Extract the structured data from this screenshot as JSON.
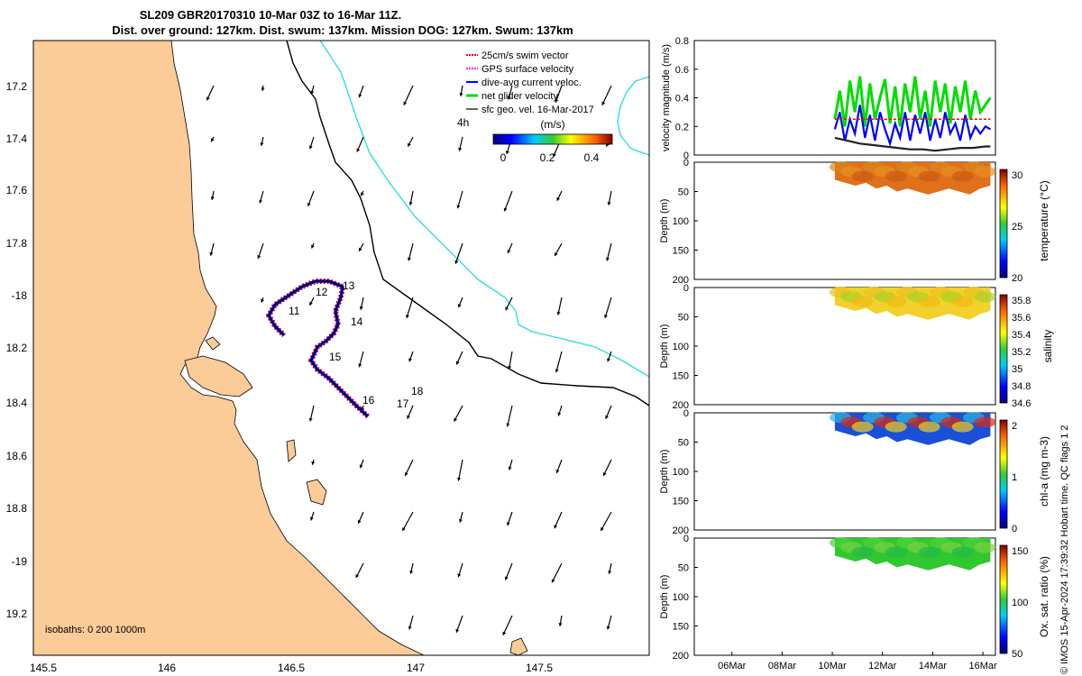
{
  "title": {
    "line1": "SL209 GBR20170310 10-Mar 03Z to 16-Mar 11Z.",
    "line2": "Dist. over ground: 127km. Dist. swum: 137km. Mission DOG: 127km. Swum: 137km"
  },
  "map": {
    "lon_ticks": [
      "145.5",
      "146",
      "146.5",
      "147",
      "147.5"
    ],
    "lat_ticks": [
      "17.2",
      "17.4",
      "17.6",
      "17.8",
      "-18",
      "18.2",
      "18.4",
      "18.6",
      "18.8",
      "-19",
      "19.2"
    ],
    "legend": [
      {
        "label": "25cm/s swim vector",
        "color": "#ff0000"
      },
      {
        "label": "GPS surface velocity",
        "color": "#ff00ff"
      },
      {
        "label": "dive-avg current veloc.",
        "color": "#0000ff"
      },
      {
        "label": "net glider velocity",
        "color": "#00dd00"
      },
      {
        "label": "sfc geo. vel. 16-Mar-2017",
        "color": "#000000"
      }
    ],
    "time_label": "4h",
    "colorbar_title": "(m/s)",
    "colorbar_ticks": [
      "0",
      "0.2",
      "0.4"
    ],
    "isobaths": "isobaths: 0   200  1000m",
    "day_labels": [
      "11",
      "12",
      "13",
      "14",
      "15",
      "16",
      "17",
      "18"
    ],
    "colors": {
      "land": "#fbcb98",
      "isobath_200": "#000000",
      "isobath_1000": "#33dddd",
      "track": "#000000",
      "swim": "#ff0000",
      "current": "#0000ff"
    }
  },
  "chart_data": [
    {
      "type": "line",
      "title": "",
      "ylabel": "velocity magnitude (m/s)",
      "xlabel": "",
      "ylim": [
        0,
        0.8
      ],
      "y_ticks": [
        "0",
        "0.2",
        "0.4",
        "0.6",
        "0.8"
      ],
      "x_ticks": [
        "06Mar",
        "08Mar",
        "10Mar",
        "12Mar",
        "14Mar",
        "16Mar"
      ],
      "x_days": [
        6,
        8,
        10,
        12,
        14,
        16
      ],
      "xlim": [
        4.5,
        16.5
      ],
      "series": [
        {
          "name": "net glider velocity",
          "color": "#00dd00",
          "x": [
            10.1,
            10.3,
            10.5,
            10.7,
            10.9,
            11.1,
            11.3,
            11.5,
            11.7,
            11.9,
            12.1,
            12.3,
            12.5,
            12.7,
            12.9,
            13.1,
            13.3,
            13.5,
            13.7,
            13.9,
            14.1,
            14.3,
            14.5,
            14.7,
            14.9,
            15.1,
            15.3,
            15.5,
            15.7,
            15.9,
            16.1,
            16.3
          ],
          "values": [
            0.25,
            0.45,
            0.2,
            0.52,
            0.3,
            0.55,
            0.2,
            0.5,
            0.25,
            0.4,
            0.53,
            0.22,
            0.48,
            0.2,
            0.5,
            0.3,
            0.55,
            0.25,
            0.45,
            0.2,
            0.52,
            0.3,
            0.5,
            0.22,
            0.48,
            0.3,
            0.52,
            0.25,
            0.45,
            0.3,
            0.35,
            0.4
          ]
        },
        {
          "name": "dive-avg current veloc.",
          "color": "#0000ff",
          "x": [
            10.1,
            10.3,
            10.5,
            10.7,
            10.9,
            11.1,
            11.3,
            11.5,
            11.7,
            11.9,
            12.1,
            12.3,
            12.5,
            12.7,
            12.9,
            13.1,
            13.3,
            13.5,
            13.7,
            13.9,
            14.1,
            14.3,
            14.5,
            14.7,
            14.9,
            15.1,
            15.3,
            15.5,
            15.7,
            15.9,
            16.1,
            16.3
          ],
          "values": [
            0.18,
            0.3,
            0.1,
            0.25,
            0.15,
            0.35,
            0.12,
            0.28,
            0.1,
            0.3,
            0.18,
            0.08,
            0.22,
            0.12,
            0.3,
            0.1,
            0.28,
            0.15,
            0.3,
            0.1,
            0.25,
            0.12,
            0.3,
            0.15,
            0.22,
            0.1,
            0.28,
            0.12,
            0.2,
            0.15,
            0.2,
            0.18
          ]
        },
        {
          "name": "25cm/s swim vector",
          "color": "#ff0000",
          "x": [
            10.1,
            16.3
          ],
          "values": [
            0.25,
            0.25
          ]
        },
        {
          "name": "sfc geo. vel.",
          "color": "#222222",
          "x": [
            10.1,
            10.6,
            11.1,
            11.6,
            12.1,
            12.6,
            13.1,
            13.6,
            14.1,
            14.6,
            15.1,
            15.6,
            16.1,
            16.3
          ],
          "values": [
            0.12,
            0.1,
            0.08,
            0.07,
            0.06,
            0.05,
            0.04,
            0.04,
            0.03,
            0.04,
            0.05,
            0.05,
            0.06,
            0.06
          ]
        }
      ]
    },
    {
      "type": "heatmap",
      "ylabel": "Depth (m)",
      "colorbar_label": "temperature (°C)",
      "colorbar_ticks": [
        "20",
        "25",
        "30"
      ],
      "ylim": [
        200,
        0
      ],
      "y_ticks": [
        "0",
        "50",
        "100",
        "150",
        "200"
      ],
      "x_range": [
        10.1,
        16.3
      ],
      "depth_profile": [
        30,
        35,
        40,
        35,
        45,
        40,
        50,
        45,
        50,
        55,
        50,
        45,
        50,
        55,
        45,
        40
      ]
    },
    {
      "type": "heatmap",
      "ylabel": "Depth (m)",
      "colorbar_label": "salinity",
      "colorbar_ticks": [
        "34.6",
        "34.8",
        "35",
        "35.2",
        "35.4",
        "35.6",
        "35.8"
      ],
      "ylim": [
        200,
        0
      ],
      "y_ticks": [
        "0",
        "50",
        "100",
        "150",
        "200"
      ],
      "x_range": [
        10.1,
        16.3
      ],
      "depth_profile": [
        30,
        35,
        40,
        35,
        45,
        40,
        50,
        45,
        50,
        55,
        50,
        45,
        50,
        55,
        45,
        40
      ]
    },
    {
      "type": "heatmap",
      "ylabel": "Depth (m)",
      "colorbar_label": "chl-a (mg m-3)",
      "colorbar_ticks": [
        "0",
        "1",
        "2"
      ],
      "ylim": [
        200,
        0
      ],
      "y_ticks": [
        "0",
        "50",
        "100",
        "150",
        "200"
      ],
      "x_range": [
        10.1,
        16.3
      ],
      "depth_profile": [
        30,
        35,
        40,
        35,
        45,
        40,
        50,
        45,
        50,
        55,
        50,
        45,
        50,
        55,
        45,
        40
      ]
    },
    {
      "type": "heatmap",
      "ylabel": "Depth (m)",
      "colorbar_label": "Ox. sat. ratio (%)",
      "colorbar_ticks": [
        "50",
        "100",
        "150"
      ],
      "ylim": [
        200,
        0
      ],
      "y_ticks": [
        "0",
        "50",
        "100",
        "150",
        "200"
      ],
      "x_range": [
        10.1,
        16.3
      ],
      "depth_profile": [
        30,
        35,
        40,
        35,
        45,
        40,
        50,
        45,
        50,
        55,
        50,
        45,
        50,
        55,
        45,
        40
      ],
      "x_ticks": [
        "06Mar",
        "08Mar",
        "10Mar",
        "12Mar",
        "14Mar",
        "16Mar"
      ]
    }
  ],
  "footer": "© IMOS 15-Apr-2024 17:39:32 Hobart time. QC flags 1  2"
}
